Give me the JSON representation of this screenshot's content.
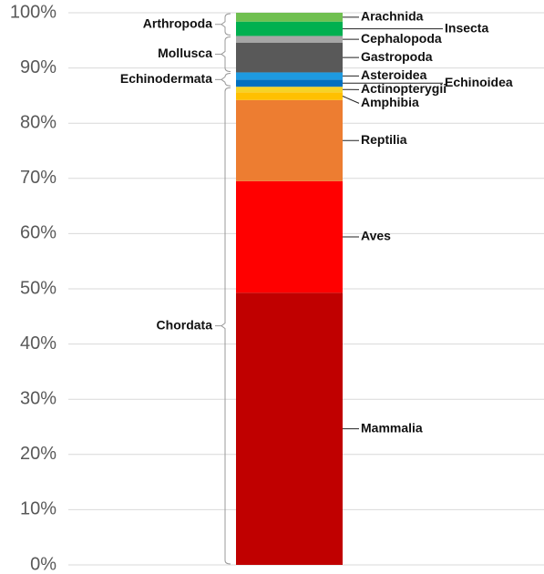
{
  "chart_data": {
    "type": "stacked_bar",
    "ylim": [
      0,
      100
    ],
    "yticks": [
      {
        "value": 0,
        "label": "0%"
      },
      {
        "value": 10,
        "label": "10%"
      },
      {
        "value": 20,
        "label": "20%"
      },
      {
        "value": 30,
        "label": "30%"
      },
      {
        "value": 40,
        "label": "40%"
      },
      {
        "value": 50,
        "label": "50%"
      },
      {
        "value": 60,
        "label": "60%"
      },
      {
        "value": 70,
        "label": "70%"
      },
      {
        "value": 80,
        "label": "80%"
      },
      {
        "value": 90,
        "label": "90%"
      },
      {
        "value": 100,
        "label": "100%"
      }
    ],
    "grid": true,
    "groups": [
      {
        "name": "Chordata",
        "series": [
          {
            "name": "Mammalia",
            "color": "#c00000",
            "values": [
              49.3
            ]
          },
          {
            "name": "Aves",
            "color": "#ff0000",
            "values": [
              20.2
            ]
          },
          {
            "name": "Reptilia",
            "color": "#ed7d31",
            "values": [
              14.7
            ]
          },
          {
            "name": "Amphibia",
            "color": "#ffc000",
            "values": [
              1.4
            ]
          },
          {
            "name": "Actinopterygii",
            "color": "#f5d327",
            "values": [
              1.0
            ]
          }
        ]
      },
      {
        "name": "Echinodermata",
        "series": [
          {
            "name": "Echinoidea",
            "color": "#0070c0",
            "values": [
              1.3
            ]
          },
          {
            "name": "Asteroidea",
            "color": "#1e9ae0",
            "values": [
              1.3
            ]
          }
        ]
      },
      {
        "name": "Mollusca",
        "series": [
          {
            "name": "Gastropoda",
            "color": "#595959",
            "values": [
              5.4
            ]
          },
          {
            "name": "Cephalopoda",
            "color": "#a6a6a6",
            "values": [
              1.2
            ]
          }
        ]
      },
      {
        "name": "Arthropoda",
        "series": [
          {
            "name": "Insecta",
            "color": "#00b050",
            "values": [
              2.6
            ]
          },
          {
            "name": "Arachnida",
            "color": "#70c050",
            "values": [
              1.6
            ]
          }
        ]
      }
    ]
  }
}
